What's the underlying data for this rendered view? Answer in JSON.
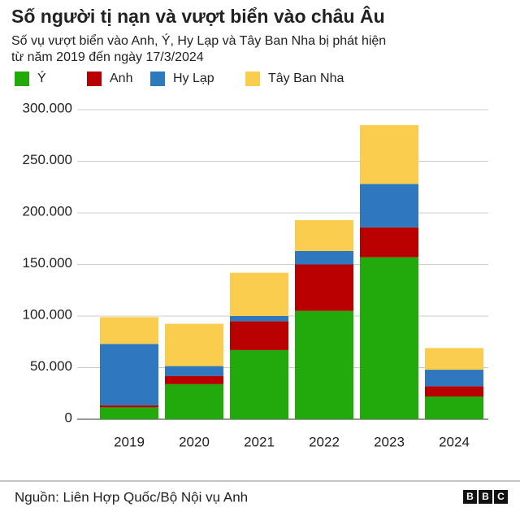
{
  "chart_data": {
    "type": "stacked_bar",
    "title": "Số người tị nạn và vượt biển vào châu Âu",
    "subtitle": [
      "Số vụ vượt biển vào Anh, Ý, Hy Lạp và Tây Ban Nha bị phát hiện",
      "từ năm 2019 đến ngày 17/3/2024"
    ],
    "categories": [
      "2019",
      "2020",
      "2021",
      "2022",
      "2023",
      "2024"
    ],
    "series": [
      {
        "name": "Ý",
        "color": "#22a90b",
        "values": [
          11500,
          34000,
          67000,
          105000,
          157000,
          22000
        ]
      },
      {
        "name": "Anh",
        "color": "#b80000",
        "values": [
          2000,
          8000,
          28000,
          45000,
          29000,
          10000
        ]
      },
      {
        "name": "Hy Lạp",
        "color": "#2e78c0",
        "values": [
          59500,
          9500,
          5000,
          13000,
          42000,
          16000
        ]
      },
      {
        "name": "Tây Ban Nha",
        "color": "#fbcd4e",
        "values": [
          26000,
          41000,
          42000,
          30000,
          57000,
          21000
        ]
      }
    ],
    "ylim": [
      0,
      300000
    ],
    "yticks": [
      0,
      {
        "value": 50000,
        "label": "50.000"
      },
      {
        "value": 100000,
        "label": "100.000"
      },
      {
        "value": 150000,
        "label": "150.000"
      },
      {
        "value": 200000,
        "label": "200.000"
      },
      {
        "value": 250000,
        "label": "250.000"
      },
      {
        "value": 300000,
        "label": "300.000"
      }
    ],
    "grid": true,
    "source": "Nguồn: Liên Hợp Quốc/Bộ Nội vụ Anh",
    "logo": [
      "B",
      "B",
      "C"
    ]
  }
}
